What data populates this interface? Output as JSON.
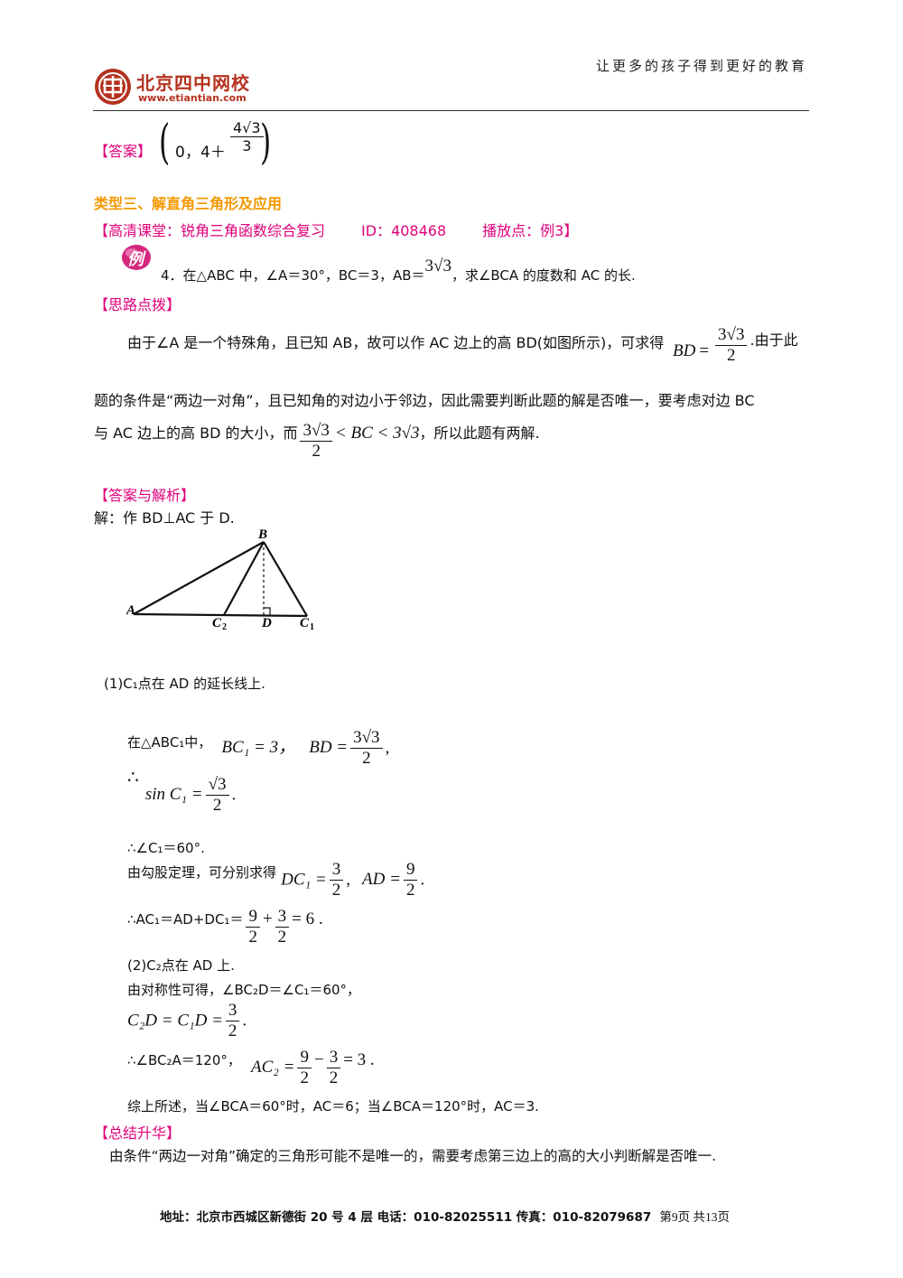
{
  "header": {
    "slogan": "让更多的孩子得到更好的教育",
    "logo_name": "北京四中网校",
    "logo_url": "www.etiantian.com"
  },
  "answer_prev": {
    "label": "【答案】",
    "open": "0，",
    "plus": "4＋",
    "num": "4√3",
    "den": "3"
  },
  "section_title": "类型三、解直角三角形及应用",
  "hd_class": {
    "open": "【高清课堂：",
    "topic": "锐角三角函数综合复习",
    "id": "ID：408468",
    "point": "播放点：例3】"
  },
  "example_badge": "例",
  "problem": {
    "p1": "4．在△ABC 中，∠A＝30°，BC＝3，AB＝",
    "val": "3√3",
    "p2": "，求∠BCA 的度数和 AC 的长."
  },
  "hint": {
    "label": "【思路点拨】",
    "l1a": "由于∠A 是一个特殊角，且已知 AB，故可以作 AC 边上的高 BD(如图所示)，可求得",
    "bd_var": "BD",
    "bd_num": "3√3",
    "bd_den": "2",
    "l1b": ".由于此",
    "l2": "题的条件是“两边一对角”，且已知角的对边小于邻边，因此需要判断此题的解是否唯一，要考虑对边 BC",
    "l3a": "与 AC 边上的高 BD 的大小，而",
    "l3_num": "3√3",
    "l3_den": "2",
    "l3_ineq": "< BC < 3√3",
    "l3b": "，所以此题有两解."
  },
  "solution": {
    "label": "【答案与解析】",
    "intro": "解：作 BD⊥AC 于 D.",
    "diagram_labels": {
      "A": "A",
      "B": "B",
      "C1": "C",
      "C1s": "1",
      "C2": "C",
      "C2s": "2",
      "D": "D"
    },
    "case1": "(1)C₁点在 AD 的延长线上.",
    "in_tri": "在△ABC₁中，",
    "bc1": "BC₁ = 3，",
    "bd": "BD =",
    "bd_num": "3√3",
    "bd_den": "2",
    "therefore": "∴",
    "sin": "sin C₁ =",
    "sin_num": "√3",
    "sin_den": "2",
    "angle_c1": "∴∠C₁＝60°.",
    "pyth": "由勾股定理，可分别求得",
    "dc1": "DC₁ =",
    "dc1_num": "3",
    "dc1_den": "2",
    "ad": "AD =",
    "ad_num": "9",
    "ad_den": "2",
    "ac1": "∴AC₁＝AD+DC₁＝",
    "ac1_n1": "9",
    "ac1_d1": "2",
    "ac1_n2": "3",
    "ac1_d2": "2",
    "ac1_res": "= 6 .",
    "case2": "(2)C₂点在 AD 上.",
    "sym": "由对称性可得，∠BC₂D＝∠C₁＝60°，",
    "c2d": "C₂D = C₁D =",
    "c2d_num": "3",
    "c2d_den": "2",
    "angle_c2": "∴∠BC₂A＝120°，",
    "ac2": "AC₂ =",
    "ac2_n1": "9",
    "ac2_d1": "2",
    "ac2_n2": "3",
    "ac2_d2": "2",
    "ac2_res": "= 3 .",
    "summary_line": "综上所述，当∠BCA＝60°时，AC＝6；当∠BCA＝120°时，AC＝3."
  },
  "summary": {
    "label": "【总结升华】",
    "text": "由条件“两边一对角”确定的三角形可能不是唯一的，需要考虑第三边上的高的大小判断解是否唯一."
  },
  "footer": {
    "address": "地址：北京市西城区新德街 20 号 4 层  电话：010-82025511  传真：010-82079687",
    "page": "第9页  共13页"
  }
}
